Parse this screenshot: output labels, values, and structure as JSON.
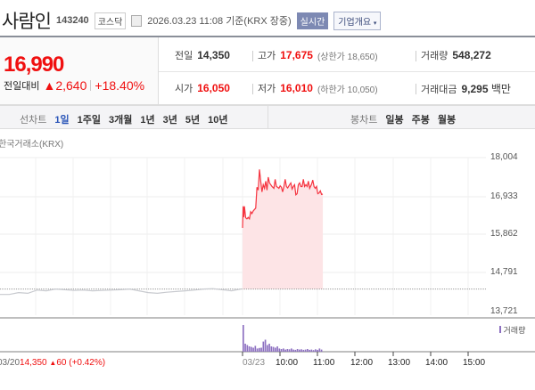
{
  "header": {
    "name": "사람인",
    "code": "143240",
    "market": "코스닥",
    "datetime": "2026.03.23 11:08",
    "basis": "기준(KRX 장중)",
    "realtime_label": "실시간",
    "company_overview_label": "기업개요",
    "calendar_icon": "calendar-icon"
  },
  "quote": {
    "price": "16,990",
    "compare_label": "전일대비",
    "change": "2,640",
    "change_pct": "+18.40%",
    "direction": "up",
    "prev_label": "전일",
    "prev": "14,350",
    "high_label": "고가",
    "high": "17,675",
    "upper_limit": "(상한가 18,650)",
    "volume_label": "거래량",
    "volume": "548,272",
    "open_label": "시가",
    "open": "16,050",
    "low_label": "저가",
    "low": "16,010",
    "lower_limit": "(하한가 10,050)",
    "amount_label": "거래대금",
    "amount": "9,295",
    "amount_unit": "백만"
  },
  "tabs": {
    "line_label": "선차트",
    "line_periods": [
      "1일",
      "1주일",
      "3개월",
      "1년",
      "3년",
      "5년",
      "10년"
    ],
    "active": "1일",
    "candle_label": "봉차트",
    "candle_periods": [
      "일봉",
      "주봉",
      "월봉"
    ]
  },
  "chart_data": {
    "type": "line",
    "source": "한국거래소(KRX)",
    "y_ticks": [
      "18,004",
      "16,933",
      "15,862",
      "14,791",
      "13,721"
    ],
    "ylim": [
      13721,
      18004
    ],
    "x_ticks": [
      "03/23",
      "10:00",
      "11:00",
      "12:00",
      "13:00",
      "14:00",
      "15:00"
    ],
    "prev_close": 14350,
    "prev_day_label": "03/20",
    "prev_day_close": "14,350",
    "prev_day_change": "60",
    "prev_day_change_pct": "(+0.42%)",
    "today": [
      [
        "09:00",
        16050
      ],
      [
        "09:01",
        16650
      ],
      [
        "09:02",
        16350
      ],
      [
        "09:03",
        16650
      ],
      [
        "09:05",
        16330
      ],
      [
        "09:07",
        16300
      ],
      [
        "09:09",
        16340
      ],
      [
        "09:11",
        16300
      ],
      [
        "09:13",
        16500
      ],
      [
        "09:15",
        16450
      ],
      [
        "09:17",
        16520
      ],
      [
        "09:19",
        16560
      ],
      [
        "09:21",
        16600
      ],
      [
        "09:23",
        17180
      ],
      [
        "09:25",
        17100
      ],
      [
        "09:27",
        17675
      ],
      [
        "09:29",
        17350
      ],
      [
        "09:31",
        17050
      ],
      [
        "09:33",
        17250
      ],
      [
        "09:35",
        17150
      ],
      [
        "09:37",
        17350
      ],
      [
        "09:39",
        17100
      ],
      [
        "09:41",
        17460
      ],
      [
        "09:43",
        17300
      ],
      [
        "09:45",
        17250
      ],
      [
        "09:47",
        17200
      ],
      [
        "09:50",
        17150
      ],
      [
        "09:52",
        17400
      ],
      [
        "09:54",
        17200
      ],
      [
        "09:56",
        17180
      ],
      [
        "09:58",
        17150
      ],
      [
        "10:00",
        17220
      ],
      [
        "10:02",
        17180
      ],
      [
        "10:04",
        17050
      ],
      [
        "10:06",
        17200
      ],
      [
        "10:08",
        17400
      ],
      [
        "10:10",
        17200
      ],
      [
        "10:12",
        17160
      ],
      [
        "10:15",
        17250
      ],
      [
        "10:17",
        17300
      ],
      [
        "10:19",
        17130
      ],
      [
        "10:21",
        17200
      ],
      [
        "10:23",
        17250
      ],
      [
        "10:25",
        16970
      ],
      [
        "10:27",
        17000
      ],
      [
        "10:29",
        17250
      ],
      [
        "10:31",
        17300
      ],
      [
        "10:33",
        17200
      ],
      [
        "10:35",
        17200
      ],
      [
        "10:37",
        17400
      ],
      [
        "10:39",
        17200
      ],
      [
        "10:41",
        17250
      ],
      [
        "10:43",
        17200
      ],
      [
        "10:45",
        17350
      ],
      [
        "10:47",
        17150
      ],
      [
        "10:50",
        17260
      ],
      [
        "10:52",
        17380
      ],
      [
        "10:54",
        17200
      ],
      [
        "10:56",
        17150
      ],
      [
        "10:58",
        17200
      ],
      [
        "11:00",
        17000
      ],
      [
        "11:02",
        17020
      ],
      [
        "11:04",
        17080
      ],
      [
        "11:06",
        16980
      ],
      [
        "11:08",
        16990
      ]
    ],
    "prev_day": [
      14200,
      14200,
      14250,
      14230,
      14320,
      14300,
      14350,
      14330,
      14310,
      14320,
      14300,
      14310,
      14320,
      14330,
      14350,
      14300,
      14250,
      14230,
      14260,
      14280,
      14300,
      14320,
      14350,
      14360,
      14330,
      14300,
      14350
    ],
    "volume_label": "거래량",
    "volume": [
      100,
      30,
      25,
      20,
      18,
      15,
      22,
      12,
      14,
      15,
      38,
      45,
      25,
      30,
      20,
      18,
      15,
      20,
      12,
      10,
      12,
      8,
      10,
      9,
      12,
      8,
      7,
      10,
      8,
      9,
      7,
      8,
      10,
      7,
      8,
      6,
      9,
      7,
      12,
      8
    ],
    "colors": {
      "line": "#f5333f",
      "fill": "#fde4e6",
      "prev": "#c8cacf",
      "volume": "#8c6fc0"
    }
  }
}
